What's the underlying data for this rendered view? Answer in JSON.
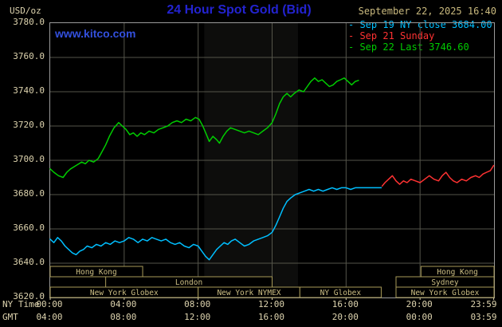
{
  "header": {
    "unit_label": "USD/oz",
    "title": "24 Hour Spot Gold (Bid)",
    "datetime": "September 22, 2025 16:40",
    "watermark": "www.kitco.com",
    "legend": [
      {
        "label": "- Sep 19 NY close 3684.00",
        "color": "#00bfff"
      },
      {
        "label": "- Sep 21 Sunday",
        "color": "#ff3232"
      },
      {
        "label": "- Sep 22 Last 3746.60",
        "color": "#00cc00"
      }
    ]
  },
  "axes": {
    "ny_label": "NY Time",
    "gmt_label": "GMT",
    "y_ticks": [
      {
        "label": "3780.0",
        "value": 3780
      },
      {
        "label": "3760.0",
        "value": 3760
      },
      {
        "label": "3740.0",
        "value": 3740
      },
      {
        "label": "3720.0",
        "value": 3720
      },
      {
        "label": "3700.0",
        "value": 3700
      },
      {
        "label": "3680.0",
        "value": 3680
      },
      {
        "label": "3660.0",
        "value": 3660
      },
      {
        "label": "3640.0",
        "value": 3640
      },
      {
        "label": "3620.0",
        "value": 3620
      }
    ],
    "x_ticks": [
      {
        "ny": "00:00",
        "gmt": "04:00",
        "h": 0
      },
      {
        "ny": "04:00",
        "gmt": "08:00",
        "h": 4
      },
      {
        "ny": "08:00",
        "gmt": "12:00",
        "h": 8
      },
      {
        "ny": "12:00",
        "gmt": "16:00",
        "h": 12
      },
      {
        "ny": "16:00",
        "gmt": "20:00",
        "h": 16
      },
      {
        "ny": "20:00",
        "gmt": "00:00",
        "h": 20
      },
      {
        "ny": "23:59",
        "gmt": "03:59",
        "h": 23.983
      }
    ]
  },
  "sessions": [
    {
      "label": "Hong Kong",
      "row": 0,
      "start": 0,
      "end": 5
    },
    {
      "label": "Hong Kong",
      "row": 0,
      "start": 20.05,
      "end": 24
    },
    {
      "label": "London",
      "row": 1,
      "start": 3,
      "end": 12
    },
    {
      "label": "Sydney",
      "row": 1,
      "start": 18.7,
      "end": 24
    },
    {
      "label": "New York Globex",
      "row": 2,
      "start": 0,
      "end": 8
    },
    {
      "label": "New York NYMEX",
      "row": 2,
      "start": 8,
      "end": 13.5
    },
    {
      "label": "NY Globex",
      "row": 2,
      "start": 13.5,
      "end": 17.9
    },
    {
      "label": "New York Globex",
      "row": 2,
      "start": 18.7,
      "end": 24
    }
  ],
  "colors": {
    "background": "#000000",
    "grid": "#55554a",
    "border": "#9b9b9b",
    "axis_text": "#ddd3ae",
    "date_text": "#c9b97e",
    "session_box": "#a89a58",
    "session_text": "#cdbf84",
    "title_blue": "#2323d0",
    "watermark_blue": "#3350dd",
    "band": "rgba(235,235,210,0.055)"
  },
  "chart_data": {
    "type": "line",
    "title": "24 Hour Spot Gold (Bid)",
    "xlabel": "NY Time (hours 00:00-23:59)",
    "ylabel": "USD/oz",
    "xlim": [
      0,
      24
    ],
    "ylim": [
      3620,
      3780
    ],
    "grid": true,
    "legend_position": "top-right",
    "shaded_band": {
      "start": 8.33,
      "end": 13.4
    },
    "series": [
      {
        "id": "sep19",
        "name": "Sep 19 NY close 3684.00",
        "color": "#00bfff",
        "x": [
          0,
          0.2,
          0.4,
          0.6,
          0.8,
          1.0,
          1.2,
          1.4,
          1.6,
          1.8,
          2.0,
          2.25,
          2.5,
          2.75,
          3.0,
          3.25,
          3.5,
          3.75,
          4.0,
          4.25,
          4.5,
          4.75,
          5.0,
          5.25,
          5.5,
          5.75,
          6.0,
          6.25,
          6.5,
          6.75,
          7.0,
          7.25,
          7.5,
          7.75,
          8.0,
          8.2,
          8.4,
          8.6,
          8.8,
          9.0,
          9.2,
          9.4,
          9.6,
          9.8,
          10.0,
          10.25,
          10.5,
          10.75,
          11.0,
          11.25,
          11.5,
          11.75,
          12.0,
          12.2,
          12.4,
          12.6,
          12.8,
          13.0,
          13.25,
          13.5,
          13.75,
          14.0,
          14.25,
          14.5,
          14.75,
          15.0,
          15.25,
          15.5,
          15.75,
          16.0,
          16.25,
          16.5,
          16.75,
          17.0,
          17.3,
          17.6,
          17.9
        ],
        "y": [
          3654,
          3652,
          3655,
          3653,
          3650,
          3648,
          3646,
          3645,
          3647,
          3648,
          3650,
          3649,
          3651,
          3650,
          3652,
          3651,
          3653,
          3652,
          3653,
          3655,
          3654,
          3652,
          3654,
          3653,
          3655,
          3654,
          3653,
          3654,
          3652,
          3651,
          3652,
          3650,
          3649,
          3651,
          3650,
          3647,
          3644,
          3642,
          3645,
          3648,
          3650,
          3652,
          3651,
          3653,
          3654,
          3652,
          3650,
          3651,
          3653,
          3654,
          3655,
          3656,
          3658,
          3662,
          3667,
          3672,
          3676,
          3678,
          3680,
          3681,
          3682,
          3683,
          3682,
          3683,
          3682,
          3683,
          3684,
          3683,
          3684,
          3684,
          3683,
          3684,
          3684,
          3684,
          3684,
          3684,
          3684
        ]
      },
      {
        "id": "sep21",
        "name": "Sep 21 Sunday",
        "color": "#ff3232",
        "x": [
          17.95,
          18.1,
          18.3,
          18.5,
          18.7,
          18.9,
          19.1,
          19.3,
          19.5,
          19.75,
          20.0,
          20.25,
          20.5,
          20.75,
          21.0,
          21.2,
          21.4,
          21.6,
          21.8,
          22.0,
          22.25,
          22.5,
          22.75,
          23.0,
          23.2,
          23.4,
          23.6,
          23.8,
          23.98
        ],
        "y": [
          3685,
          3687,
          3689,
          3691,
          3688,
          3686,
          3688,
          3687,
          3689,
          3688,
          3687,
          3689,
          3691,
          3689,
          3688,
          3691,
          3693,
          3690,
          3688,
          3687,
          3689,
          3688,
          3690,
          3691,
          3690,
          3692,
          3693,
          3694,
          3697
        ]
      },
      {
        "id": "sep22",
        "name": "Sep 22 Last 3746.60",
        "color": "#00cc00",
        "x": [
          0,
          0.2,
          0.45,
          0.7,
          0.9,
          1.1,
          1.4,
          1.7,
          1.9,
          2.1,
          2.35,
          2.6,
          2.8,
          3.0,
          3.2,
          3.45,
          3.7,
          3.9,
          4.1,
          4.3,
          4.5,
          4.7,
          4.9,
          5.1,
          5.35,
          5.6,
          5.85,
          6.1,
          6.35,
          6.6,
          6.85,
          7.1,
          7.35,
          7.6,
          7.85,
          8.05,
          8.25,
          8.45,
          8.6,
          8.8,
          9.0,
          9.15,
          9.35,
          9.55,
          9.75,
          10.0,
          10.25,
          10.5,
          10.75,
          11.0,
          11.25,
          11.5,
          11.75,
          12.0,
          12.2,
          12.4,
          12.6,
          12.8,
          13.0,
          13.2,
          13.45,
          13.7,
          13.9,
          14.1,
          14.3,
          14.5,
          14.7,
          14.9,
          15.1,
          15.3,
          15.5,
          15.7,
          15.9,
          16.1,
          16.3,
          16.5,
          16.67
        ],
        "y": [
          3695,
          3693,
          3691,
          3690,
          3693,
          3695,
          3697,
          3699,
          3698,
          3700,
          3699,
          3701,
          3705,
          3709,
          3714,
          3719,
          3722,
          3720,
          3718,
          3715,
          3716,
          3714,
          3716,
          3715,
          3717,
          3716,
          3718,
          3719,
          3720,
          3722,
          3723,
          3722,
          3724,
          3723,
          3725,
          3724,
          3720,
          3715,
          3711,
          3714,
          3712,
          3710,
          3714,
          3717,
          3719,
          3718,
          3717,
          3716,
          3717,
          3716,
          3715,
          3717,
          3719,
          3722,
          3727,
          3733,
          3737,
          3739,
          3737,
          3739,
          3741,
          3740,
          3743,
          3746,
          3748,
          3746,
          3747,
          3745,
          3743,
          3744,
          3746,
          3747,
          3748,
          3746,
          3744,
          3746,
          3746.6
        ]
      }
    ]
  }
}
